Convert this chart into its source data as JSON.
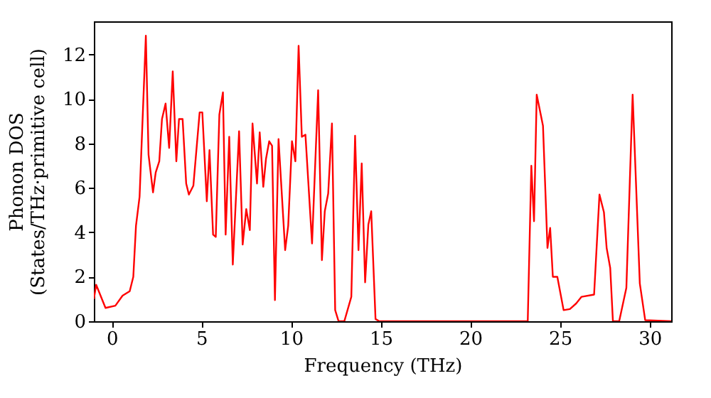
{
  "chart_data": {
    "type": "line",
    "xlabel": "Frequency (THz)",
    "ylabel": "Phonon DOS\n(States/THz·primitive cell)",
    "xlim": [
      -1,
      31.2
    ],
    "ylim": [
      0,
      13.5
    ],
    "xticks": [
      0,
      5,
      10,
      15,
      20,
      25,
      30
    ],
    "yticks": [
      0,
      2,
      4,
      6,
      8,
      10,
      12
    ],
    "grid": false,
    "legend": false,
    "series": [
      {
        "color": "#ff0000",
        "x": [
          -1,
          -0.87,
          -0.35,
          0.2,
          0.6,
          1.0,
          1.2,
          1.35,
          1.55,
          1.9,
          2.05,
          2.3,
          2.45,
          2.65,
          2.8,
          3.0,
          3.2,
          3.4,
          3.6,
          3.75,
          3.95,
          4.15,
          4.3,
          4.55,
          4.9,
          5.05,
          5.3,
          5.45,
          5.65,
          5.8,
          6.0,
          6.2,
          6.35,
          6.55,
          6.75,
          7.1,
          7.3,
          7.5,
          7.7,
          7.85,
          8.1,
          8.25,
          8.45,
          8.6,
          8.78,
          8.94,
          9.1,
          9.3,
          9.67,
          9.84,
          10.05,
          10.24,
          10.42,
          10.6,
          10.8,
          11.17,
          11.51,
          11.72,
          11.88,
          12.07,
          12.28,
          12.46,
          12.65,
          12.97,
          13.36,
          13.57,
          13.76,
          13.94,
          14.13,
          14.31,
          14.47,
          14.71,
          14.92,
          23.2,
          23.4,
          23.55,
          23.7,
          24.05,
          24.3,
          24.45,
          24.6,
          24.85,
          25.2,
          25.55,
          25.9,
          26.2,
          26.9,
          27.2,
          27.45,
          27.6,
          27.8,
          27.95,
          28.3,
          28.7,
          29.05,
          29.45,
          29.75,
          31.2
        ],
        "values": [
          1.0,
          1.64,
          0.6,
          0.7,
          1.15,
          1.35,
          2.0,
          4.3,
          5.6,
          12.85,
          7.5,
          5.8,
          6.7,
          7.2,
          9.1,
          9.8,
          7.8,
          11.25,
          7.2,
          9.1,
          9.1,
          6.2,
          5.7,
          6.1,
          9.4,
          9.4,
          5.4,
          7.7,
          3.9,
          3.8,
          9.3,
          10.3,
          3.9,
          8.3,
          2.55,
          8.55,
          3.45,
          5.05,
          4.1,
          8.9,
          6.2,
          8.5,
          6.05,
          7.3,
          8.1,
          7.9,
          0.95,
          8.2,
          3.2,
          4.3,
          8.1,
          7.2,
          12.4,
          8.3,
          8.4,
          3.5,
          10.4,
          2.75,
          4.95,
          5.75,
          8.9,
          0.5,
          0,
          0,
          1.1,
          8.35,
          3.2,
          7.1,
          1.75,
          4.35,
          4.95,
          0.1,
          0,
          0,
          7.0,
          4.5,
          10.2,
          8.8,
          3.3,
          4.2,
          2.0,
          2.0,
          0.5,
          0.55,
          0.8,
          1.1,
          1.2,
          5.7,
          4.9,
          3.3,
          2.4,
          0,
          0,
          1.5,
          10.2,
          1.7,
          0.05,
          0
        ]
      }
    ]
  }
}
